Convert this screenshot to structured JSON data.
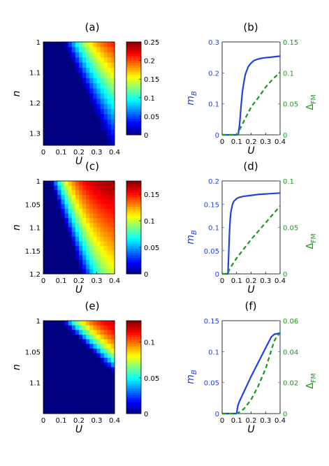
{
  "colors": {
    "blue": "#2341e0",
    "green": "#1a9a1a",
    "axis": "#000000"
  },
  "chart_data": [
    {
      "type": "heatmap",
      "panel_label": "(a)",
      "xlabel": "U",
      "ylabel": "n",
      "xlim": [
        0,
        0.4
      ],
      "ylim": [
        1,
        1.34
      ],
      "xticks": [
        "0",
        "0.1",
        "0.2",
        "0.3",
        "0.4"
      ],
      "yticks": [
        {
          "v": 1,
          "t": "1"
        },
        {
          "v": 1.1,
          "t": "1.1"
        },
        {
          "v": 1.2,
          "t": "1.2"
        },
        {
          "v": 1.3,
          "t": "1.3"
        }
      ],
      "nx": 20,
      "ny": 20,
      "boundary": {
        "u0": 0.115,
        "slope": 0.76
      },
      "value_model": {
        "vmax": 0.25,
        "decay": 7
      },
      "colorbar": {
        "vmin": 0,
        "vmax": 0.25,
        "ticks": [
          "0",
          "0.05",
          "0.1",
          "0.15",
          "0.2",
          "0.25"
        ]
      }
    },
    {
      "type": "line",
      "panel_label": "(b)",
      "xlabel": "U",
      "ylabel_left": "m_B",
      "ylabel_right": "Δ_FM",
      "xlim": [
        0,
        0.4
      ],
      "ylim_left": [
        0,
        0.3
      ],
      "ylim_right": [
        0,
        0.15
      ],
      "xticks": [
        "0",
        "0.1",
        "0.2",
        "0.3",
        "0.4"
      ],
      "yticks_left": [
        "0",
        "0.1",
        "0.2",
        "0.3"
      ],
      "yticks_right": [
        "0",
        "0.05",
        "0.1",
        "0.15"
      ],
      "series": [
        {
          "axis": "left",
          "style": "solid",
          "x": [
            0,
            0.11,
            0.12,
            0.13,
            0.14,
            0.15,
            0.16,
            0.18,
            0.2,
            0.22,
            0.25,
            0.28,
            0.32,
            0.36,
            0.4
          ],
          "y": [
            0,
            0,
            0.03,
            0.09,
            0.14,
            0.17,
            0.195,
            0.22,
            0.232,
            0.24,
            0.245,
            0.248,
            0.25,
            0.252,
            0.254
          ]
        },
        {
          "axis": "right",
          "style": "dashed",
          "x": [
            0,
            0.11,
            0.12,
            0.15,
            0.2,
            0.25,
            0.3,
            0.35,
            0.4
          ],
          "y": [
            0,
            0,
            0.008,
            0.022,
            0.045,
            0.06,
            0.077,
            0.09,
            0.101
          ]
        }
      ]
    },
    {
      "type": "heatmap",
      "panel_label": "(c)",
      "xlabel": "U",
      "ylabel": "n",
      "xlim": [
        0,
        0.4
      ],
      "ylim": [
        1,
        1.2
      ],
      "xticks": [
        "0",
        "0.1",
        "0.2",
        "0.3",
        "0.4"
      ],
      "yticks": [
        {
          "v": 1,
          "t": "1"
        },
        {
          "v": 1.05,
          "t": "1.05"
        },
        {
          "v": 1.1,
          "t": "1.1"
        },
        {
          "v": 1.15,
          "t": "1.15"
        },
        {
          "v": 1.2,
          "t": "1.2"
        }
      ],
      "nx": 20,
      "ny": 20,
      "boundary": {
        "u0": 0.04,
        "slope": 0.9
      },
      "value_model": {
        "vmax": 0.175,
        "decay": 11
      },
      "colorbar": {
        "vmin": 0,
        "vmax": 0.175,
        "ticks": [
          "0",
          "0.05",
          "0.1",
          "0.15"
        ]
      }
    },
    {
      "type": "line",
      "panel_label": "(d)",
      "xlabel": "U",
      "ylabel_left": "m_B",
      "ylabel_right": "Δ_FM",
      "xlim": [
        0,
        0.4
      ],
      "ylim_left": [
        0,
        0.2
      ],
      "ylim_right": [
        0,
        0.1
      ],
      "xticks": [
        "0",
        "0.1",
        "0.2",
        "0.3",
        "0.4"
      ],
      "yticks_left": [
        "0",
        "0.05",
        "0.1",
        "0.15",
        "0.2"
      ],
      "yticks_right": [
        "0",
        "0.05",
        "0.1"
      ],
      "series": [
        {
          "axis": "left",
          "style": "solid",
          "x": [
            0,
            0.04,
            0.045,
            0.05,
            0.055,
            0.06,
            0.07,
            0.08,
            0.1,
            0.12,
            0.15,
            0.2,
            0.25,
            0.3,
            0.35,
            0.4
          ],
          "y": [
            0,
            0,
            0.04,
            0.085,
            0.115,
            0.132,
            0.148,
            0.156,
            0.162,
            0.165,
            0.167,
            0.169,
            0.171,
            0.172,
            0.173,
            0.174
          ]
        },
        {
          "axis": "right",
          "style": "dashed",
          "x": [
            0,
            0.04,
            0.05,
            0.1,
            0.15,
            0.2,
            0.25,
            0.3,
            0.35,
            0.4
          ],
          "y": [
            0,
            0,
            0.005,
            0.017,
            0.027,
            0.037,
            0.046,
            0.055,
            0.064,
            0.073
          ]
        }
      ]
    },
    {
      "type": "heatmap",
      "panel_label": "(e)",
      "xlabel": "U",
      "ylabel": "n",
      "xlim": [
        0,
        0.4
      ],
      "ylim": [
        1,
        1.15
      ],
      "xticks": [
        "0",
        "0.1",
        "0.2",
        "0.3",
        "0.4"
      ],
      "yticks": [
        {
          "v": 1,
          "t": "1"
        },
        {
          "v": 1.05,
          "t": "1.05"
        },
        {
          "v": 1.1,
          "t": "1.1"
        }
      ],
      "nx": 20,
      "ny": 20,
      "boundary": {
        "u0": 0.1,
        "slope": 3.5
      },
      "value_model": {
        "vmax": 0.13,
        "decay": 9
      },
      "colorbar": {
        "vmin": 0,
        "vmax": 0.13,
        "ticks": [
          "0",
          "0.05",
          "0.1"
        ]
      }
    },
    {
      "type": "line",
      "panel_label": "(f)",
      "xlabel": "U",
      "ylabel_left": "m_B",
      "ylabel_right": "Δ_FM",
      "xlim": [
        0,
        0.4
      ],
      "ylim_left": [
        0,
        0.15
      ],
      "ylim_right": [
        0,
        0.06
      ],
      "xticks": [
        "0",
        "0.1",
        "0.2",
        "0.3",
        "0.4"
      ],
      "yticks_left": [
        "0",
        "0.05",
        "0.1",
        "0.15"
      ],
      "yticks_right": [
        "0",
        "0.02",
        "0.04",
        "0.06"
      ],
      "series": [
        {
          "axis": "left",
          "style": "solid",
          "x": [
            0,
            0.1,
            0.105,
            0.11,
            0.12,
            0.14,
            0.17,
            0.2,
            0.25,
            0.3,
            0.34,
            0.36,
            0.38,
            0.4
          ],
          "y": [
            0,
            0,
            0.008,
            0.014,
            0.02,
            0.03,
            0.045,
            0.06,
            0.083,
            0.106,
            0.124,
            0.128,
            0.129,
            0.13
          ]
        },
        {
          "axis": "right",
          "style": "dashed",
          "x": [
            0,
            0.1,
            0.12,
            0.15,
            0.2,
            0.25,
            0.3,
            0.33,
            0.36,
            0.38,
            0.4
          ],
          "y": [
            0,
            0,
            0.001,
            0.003,
            0.009,
            0.018,
            0.029,
            0.038,
            0.047,
            0.05,
            0.052
          ]
        }
      ]
    }
  ]
}
